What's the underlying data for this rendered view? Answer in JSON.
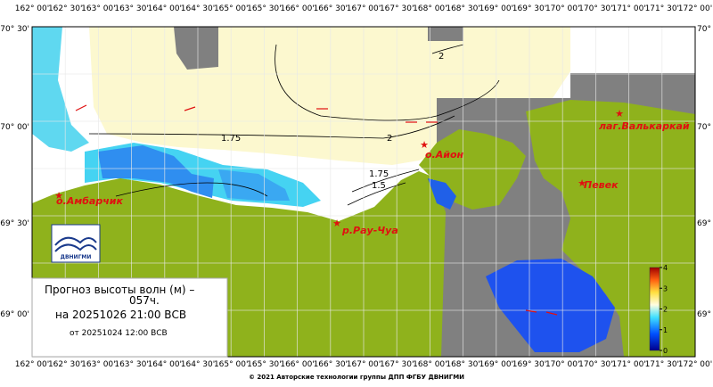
{
  "map": {
    "lon_labels": [
      "162° 00'",
      "162° 30'",
      "163° 00'",
      "163° 30'",
      "164° 00'",
      "164° 30'",
      "165° 00'",
      "165° 30'",
      "166° 00'",
      "166° 30'",
      "167° 00'",
      "167° 30'",
      "168° 00'",
      "168° 30'",
      "169° 00'",
      "169° 30'",
      "170° 00'",
      "170° 30'",
      "171° 00'",
      "171° 30'",
      "172° 00'"
    ],
    "lat_labels_left": [
      "70° 30'",
      "70° 00'",
      "69° 30'",
      "69° 00'"
    ],
    "lat_labels_right": [
      "70° 3",
      "70° 0",
      "69° 3",
      "69° 0"
    ],
    "places": [
      "о.Айон",
      "лаг.Валькаркай",
      "Певек",
      "о.Амбарчик",
      "р.Рау-Чуа"
    ],
    "contour_labels": [
      "1.75",
      "2",
      "2",
      "1.75",
      "1.5"
    ],
    "legend": {
      "title_lines": [
        "Прогноз высоты волн (м) –",
        "057ч."
      ],
      "valid": "на 20251026 21:00 ВСВ",
      "issued": "от 20251024 12:00 ВСВ"
    },
    "logo": "ДВНИГМИ",
    "colorbar_ticks": [
      0,
      1,
      2,
      3,
      4
    ]
  },
  "footer": "© 2021 Авторские технологии группы ДПП ФГБУ ДВНИГМИ"
}
